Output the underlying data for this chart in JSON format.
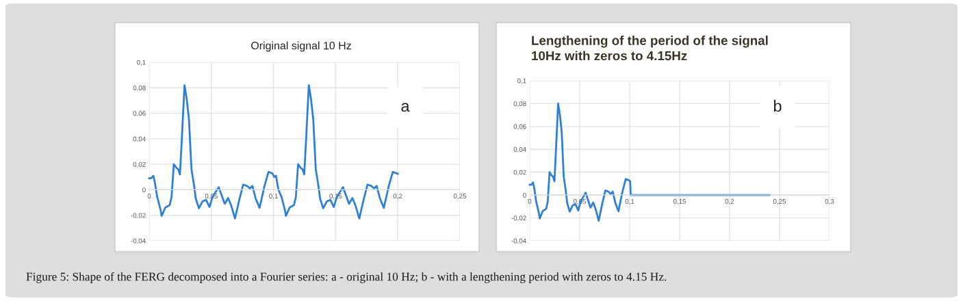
{
  "chart_data": [
    {
      "type": "line",
      "title": "Original signal 10 Hz",
      "x": [
        0,
        0.0015,
        0.0033,
        0.0046,
        0.0064,
        0.0092,
        0.01,
        0.013,
        0.0165,
        0.018,
        0.0198,
        0.022,
        0.0234,
        0.0247,
        0.026,
        0.0284,
        0.0302,
        0.032,
        0.034,
        0.036,
        0.0375,
        0.04,
        0.043,
        0.0458,
        0.0485,
        0.051,
        0.0559,
        0.0608,
        0.0635,
        0.066,
        0.069,
        0.0727,
        0.0756,
        0.0787,
        0.081,
        0.083,
        0.0857,
        0.0888,
        0.0925,
        0.096,
        0.0989,
        0.1007,
        0.102,
        0.104,
        0.1064,
        0.1092,
        0.11,
        0.113,
        0.1165,
        0.118,
        0.1198,
        0.122,
        0.1234,
        0.1247,
        0.126,
        0.1284,
        0.1302,
        0.132,
        0.134,
        0.136,
        0.1375,
        0.14,
        0.143,
        0.1458,
        0.1485,
        0.151,
        0.1559,
        0.1608,
        0.1635,
        0.166,
        0.169,
        0.1727,
        0.1756,
        0.1787,
        0.181,
        0.183,
        0.1857,
        0.1888,
        0.1925,
        0.196,
        0.1989,
        0.2
      ],
      "series": [
        {
          "color": "#2e7fd6",
          "values": [
            0.009,
            0.009,
            0.011,
            0.0055,
            -0.0055,
            -0.016,
            -0.0205,
            -0.014,
            -0.012,
            -0.0055,
            0.02,
            0.017,
            0.016,
            0.012,
            0.035,
            0.082,
            0.071,
            0.055,
            0.016,
            0.004,
            -0.007,
            -0.0145,
            -0.009,
            -0.008,
            -0.0135,
            -0.0055,
            0.002,
            -0.011,
            -0.0065,
            -0.0125,
            -0.0225,
            -0.007,
            0.004,
            0.003,
            0.001,
            0.003,
            -0.007,
            -0.0142,
            0.002,
            0.014,
            0.013,
            0.01,
            0.011,
            0,
            -0.0055,
            -0.016,
            -0.0205,
            -0.014,
            -0.012,
            -0.0055,
            0.02,
            0.017,
            0.016,
            0.012,
            0.035,
            0.082,
            0.071,
            0.055,
            0.016,
            0.004,
            -0.007,
            -0.0145,
            -0.009,
            -0.008,
            -0.0135,
            -0.0055,
            0.002,
            -0.011,
            -0.0065,
            -0.0125,
            -0.0225,
            -0.007,
            0.004,
            0.003,
            0.001,
            0.003,
            -0.007,
            -0.0142,
            0.002,
            0.014,
            0.013,
            0.0125
          ]
        }
      ],
      "xlim": [
        0,
        0.25
      ],
      "ylim": [
        -0.04,
        0.1
      ],
      "xticks": [
        0,
        {
          "value": 0.05,
          "label": "0,05"
        },
        {
          "value": 0.1,
          "label": "0,1"
        },
        {
          "value": 0.15,
          "label": "0,15"
        },
        {
          "value": 0.2,
          "label": "0,2"
        },
        {
          "value": 0.25,
          "label": "0,25"
        }
      ],
      "yticks": [
        {
          "value": -0.04,
          "label": "-0,04"
        },
        {
          "value": -0.02,
          "label": "-0,02"
        },
        0,
        {
          "value": 0.02,
          "label": "0,02"
        },
        {
          "value": 0.04,
          "label": "0,04"
        },
        {
          "value": 0.06,
          "label": "0,06"
        },
        {
          "value": 0.08,
          "label": "0,08"
        },
        {
          "value": 0.1,
          "label": "0,1"
        }
      ],
      "grid": true,
      "annotations": [
        "a",
        "Figure 5: Shape of the FERG decomposed into a Fourier series: a - original 10 Hz; b - with a lengthening period with zeros to 4.15 Hz."
      ]
    },
    {
      "type": "line",
      "title": "Lengthening of the period of the signal\n10Hz with zeros to 4.15Hz",
      "x": [
        0,
        0.0015,
        0.0033,
        0.0046,
        0.0064,
        0.0092,
        0.01,
        0.013,
        0.0165,
        0.018,
        0.0198,
        0.022,
        0.0234,
        0.0247,
        0.026,
        0.0284,
        0.0302,
        0.032,
        0.034,
        0.036,
        0.0375,
        0.04,
        0.043,
        0.0458,
        0.0485,
        0.051,
        0.0559,
        0.0608,
        0.0635,
        0.066,
        0.069,
        0.0727,
        0.0756,
        0.0787,
        0.081,
        0.083,
        0.0857,
        0.0888,
        0.0925,
        0.096,
        0.0989,
        0.1005,
        0.101,
        0.24
      ],
      "series": [
        {
          "color": "#2e7fd6",
          "values": [
            0.009,
            0.009,
            0.011,
            0.0055,
            -0.0055,
            -0.016,
            -0.0205,
            -0.014,
            -0.012,
            -0.0055,
            0.02,
            0.017,
            0.016,
            0.012,
            0.035,
            0.08,
            0.07,
            0.055,
            0.016,
            0.004,
            -0.007,
            -0.0145,
            -0.009,
            -0.008,
            -0.0135,
            -0.0055,
            0.002,
            -0.011,
            -0.0065,
            -0.0125,
            -0.0225,
            -0.007,
            0.004,
            0.003,
            0.001,
            0.003,
            -0.007,
            -0.0142,
            0.002,
            0.014,
            0.013,
            0.012,
            0,
            0
          ]
        }
      ],
      "xlim": [
        0,
        0.3
      ],
      "ylim": [
        -0.04,
        0.1
      ],
      "xticks": [
        0,
        {
          "value": 0.05,
          "label": "0,05"
        },
        {
          "value": 0.1,
          "label": "0,1"
        },
        {
          "value": 0.15,
          "label": "0,15"
        },
        {
          "value": 0.2,
          "label": "0,2"
        },
        {
          "value": 0.25,
          "label": "0,25"
        },
        {
          "value": 0.3,
          "label": "0,3"
        }
      ],
      "yticks": [
        {
          "value": -0.04,
          "label": "-0,04"
        },
        {
          "value": -0.02,
          "label": "-0,02"
        },
        0,
        {
          "value": 0.02,
          "label": "0,02"
        },
        {
          "value": 0.04,
          "label": "0,04"
        },
        {
          "value": 0.06,
          "label": "0,06"
        },
        {
          "value": 0.08,
          "label": "0,08"
        },
        {
          "value": 0.1,
          "label": "0,1"
        }
      ],
      "grid": true,
      "annotations": [
        "b"
      ]
    }
  ]
}
